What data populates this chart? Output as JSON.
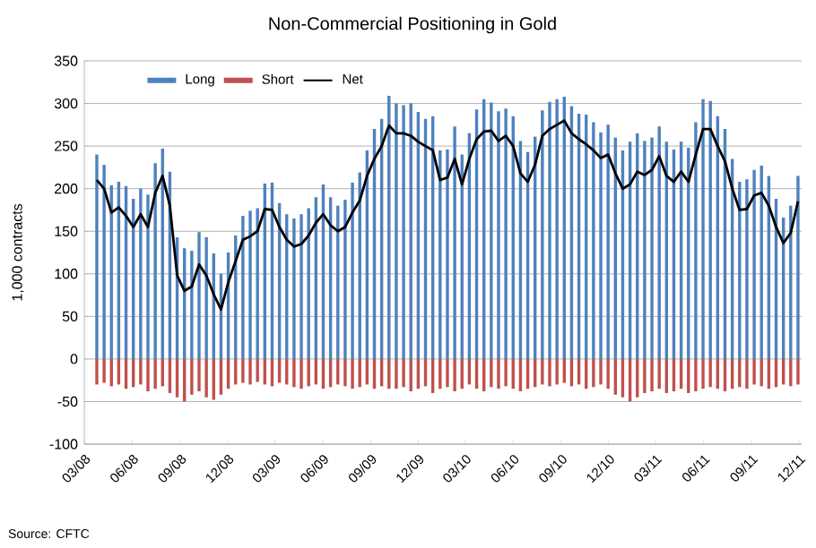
{
  "chart_data": {
    "type": "bar",
    "title": "Non-Commercial Positioning in Gold",
    "ylabel": "1,000 contracts",
    "x": [
      "2008-03-25",
      "2008-04-08",
      "2008-04-22",
      "2008-05-06",
      "2008-05-20",
      "2008-06-03",
      "2008-06-17",
      "2008-07-01",
      "2008-07-15",
      "2008-07-29",
      "2008-08-12",
      "2008-08-26",
      "2008-09-09",
      "2008-09-23",
      "2008-10-07",
      "2008-10-21",
      "2008-11-04",
      "2008-11-18",
      "2008-12-02",
      "2008-12-16",
      "2008-12-30",
      "2009-01-13",
      "2009-01-27",
      "2009-02-10",
      "2009-02-24",
      "2009-03-10",
      "2009-03-24",
      "2009-04-07",
      "2009-04-21",
      "2009-05-05",
      "2009-05-19",
      "2009-06-02",
      "2009-06-16",
      "2009-06-30",
      "2009-07-14",
      "2009-07-28",
      "2009-08-11",
      "2009-08-25",
      "2009-09-08",
      "2009-09-22",
      "2009-10-06",
      "2009-10-20",
      "2009-11-03",
      "2009-11-17",
      "2009-12-01",
      "2009-12-15",
      "2009-12-29",
      "2010-01-12",
      "2010-01-26",
      "2010-02-09",
      "2010-02-23",
      "2010-03-09",
      "2010-03-23",
      "2010-04-06",
      "2010-04-20",
      "2010-05-04",
      "2010-05-18",
      "2010-06-01",
      "2010-06-15",
      "2010-06-29",
      "2010-07-13",
      "2010-07-27",
      "2010-08-10",
      "2010-08-24",
      "2010-09-07",
      "2010-09-21",
      "2010-10-05",
      "2010-10-19",
      "2010-11-02",
      "2010-11-16",
      "2010-11-30",
      "2010-12-14",
      "2010-12-28",
      "2011-01-11",
      "2011-01-25",
      "2011-02-08",
      "2011-02-22",
      "2011-03-08",
      "2011-03-22",
      "2011-04-05",
      "2011-04-19",
      "2011-05-03",
      "2011-05-17",
      "2011-05-31",
      "2011-06-14",
      "2011-06-28",
      "2011-07-12",
      "2011-07-26",
      "2011-08-09",
      "2011-08-23",
      "2011-09-06",
      "2011-09-20",
      "2011-10-04",
      "2011-10-18",
      "2011-11-01",
      "2011-11-15",
      "2011-11-29"
    ],
    "xlim": [
      "2008-03-01",
      "2011-12-06"
    ],
    "xticks": [
      {
        "value": "2008-03-01",
        "label": "03/08"
      },
      {
        "value": "2008-06-01",
        "label": "06/08"
      },
      {
        "value": "2008-09-01",
        "label": "09/08"
      },
      {
        "value": "2008-12-01",
        "label": "12/08"
      },
      {
        "value": "2009-03-01",
        "label": "03/09"
      },
      {
        "value": "2009-06-01",
        "label": "06/09"
      },
      {
        "value": "2009-09-01",
        "label": "09/09"
      },
      {
        "value": "2009-12-01",
        "label": "12/09"
      },
      {
        "value": "2010-03-01",
        "label": "03/10"
      },
      {
        "value": "2010-06-01",
        "label": "06/10"
      },
      {
        "value": "2010-09-01",
        "label": "09/10"
      },
      {
        "value": "2010-12-01",
        "label": "12/10"
      },
      {
        "value": "2011-03-01",
        "label": "03/11"
      },
      {
        "value": "2011-06-01",
        "label": "06/11"
      },
      {
        "value": "2011-09-01",
        "label": "09/11"
      },
      {
        "value": "2011-12-01",
        "label": "12/11"
      }
    ],
    "ylim": [
      -100,
      350
    ],
    "yticks": [
      -100,
      -50,
      0,
      50,
      100,
      150,
      200,
      250,
      300,
      350
    ],
    "grid": "y",
    "legend": "top left",
    "series": [
      {
        "name": "Long",
        "color": "#4f81bd",
        "values": [
          240,
          228,
          204,
          208,
          203,
          188,
          200,
          193,
          230,
          247,
          220,
          143,
          130,
          127,
          149,
          143,
          124,
          100,
          125,
          145,
          168,
          174,
          177,
          206,
          207,
          183,
          170,
          165,
          170,
          177,
          190,
          205,
          190,
          180,
          187,
          207,
          219,
          245,
          270,
          282,
          309,
          300,
          298,
          300,
          290,
          282,
          285,
          245,
          246,
          273,
          240,
          265,
          293,
          305,
          301,
          291,
          294,
          285,
          256,
          243,
          261,
          292,
          302,
          305,
          308,
          297,
          288,
          287,
          278,
          266,
          275,
          260,
          245,
          255,
          265,
          256,
          260,
          273,
          255,
          246,
          255,
          248,
          278,
          305,
          303,
          285,
          270,
          235,
          208,
          211,
          222,
          227,
          215,
          188,
          166,
          180,
          215
        ]
      },
      {
        "name": "Short",
        "color": "#c0504d",
        "values": [
          -30,
          -28,
          -32,
          -30,
          -35,
          -33,
          -30,
          -38,
          -35,
          -32,
          -40,
          -45,
          -50,
          -42,
          -38,
          -45,
          -48,
          -42,
          -35,
          -30,
          -28,
          -30,
          -27,
          -30,
          -32,
          -28,
          -30,
          -33,
          -35,
          -32,
          -30,
          -35,
          -33,
          -30,
          -32,
          -35,
          -33,
          -30,
          -35,
          -32,
          -35,
          -35,
          -33,
          -38,
          -35,
          -32,
          -40,
          -35,
          -33,
          -38,
          -35,
          -30,
          -35,
          -38,
          -33,
          -35,
          -32,
          -35,
          -38,
          -35,
          -33,
          -30,
          -32,
          -30,
          -28,
          -32,
          -30,
          -35,
          -33,
          -30,
          -35,
          -42,
          -45,
          -50,
          -45,
          -40,
          -38,
          -35,
          -40,
          -38,
          -35,
          -40,
          -38,
          -35,
          -33,
          -35,
          -38,
          -35,
          -33,
          -35,
          -30,
          -32,
          -35,
          -33,
          -30,
          -32,
          -30
        ]
      },
      {
        "name": "Net",
        "type": "line",
        "color": "#000000",
        "values": [
          210,
          200,
          172,
          178,
          168,
          155,
          170,
          155,
          195,
          215,
          180,
          98,
          80,
          85,
          111,
          98,
          76,
          58,
          90,
          115,
          140,
          144,
          150,
          176,
          175,
          155,
          140,
          132,
          135,
          145,
          160,
          170,
          157,
          150,
          155,
          172,
          186,
          215,
          235,
          250,
          274,
          265,
          265,
          262,
          255,
          250,
          245,
          210,
          213,
          235,
          205,
          235,
          258,
          267,
          268,
          256,
          262,
          250,
          218,
          208,
          228,
          262,
          270,
          275,
          280,
          265,
          258,
          252,
          245,
          236,
          240,
          218,
          200,
          205,
          220,
          216,
          222,
          238,
          215,
          208,
          220,
          208,
          240,
          270,
          270,
          250,
          232,
          200,
          175,
          176,
          192,
          195,
          180,
          155,
          136,
          148,
          185
        ]
      }
    ],
    "annotations": [
      "Source: CFTC"
    ]
  }
}
